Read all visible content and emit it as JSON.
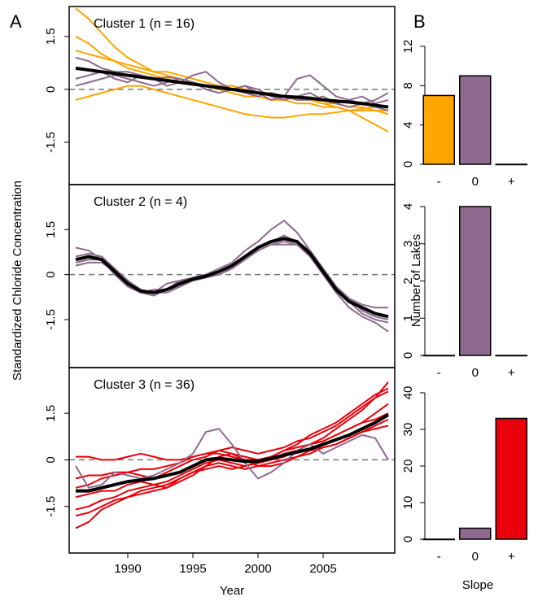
{
  "figure": {
    "panel_a": "A",
    "panel_b": "B",
    "y_label_a": "Standardized Chloride Concentration",
    "x_label_a": "Year",
    "y_label_b": "Number of Lakes",
    "x_label_b": "Slope"
  },
  "chart_data": [
    {
      "type": "line",
      "title": "Cluster 1 (n = 16)",
      "x": [
        1986,
        1987,
        1988,
        1989,
        1990,
        1991,
        1992,
        1993,
        1994,
        1995,
        1996,
        1997,
        1998,
        1999,
        2000,
        2001,
        2002,
        2003,
        2004,
        2005,
        2006,
        2007,
        2008,
        2009,
        2010
      ],
      "xlim": [
        1985.5,
        2010.5
      ],
      "ylim": [
        -2.7,
        2.35
      ],
      "yticks": [
        -1.5,
        0,
        1.5
      ],
      "hline": 0,
      "series": [
        {
          "color": "#ffa500",
          "values": [
            2.3,
            2.0,
            1.6,
            1.2,
            0.9,
            0.7,
            0.5,
            0.4,
            0.3,
            0.2,
            0.1,
            0,
            -0.1,
            -0.2,
            -0.2,
            -0.3,
            -0.3,
            -0.4,
            -0.4,
            -0.5,
            -0.5,
            -0.6,
            -0.6,
            -0.6,
            -0.7
          ]
        },
        {
          "color": "#ffa500",
          "values": [
            1.5,
            1.3,
            1.0,
            0.8,
            0.6,
            0.5,
            0.4,
            0.3,
            0.2,
            0.2,
            0.1,
            0.1,
            0,
            0,
            -0.1,
            -0.1,
            -0.2,
            -0.2,
            -0.3,
            -0.4,
            -0.5,
            -0.6,
            -0.8,
            -1.0,
            -1.2
          ]
        },
        {
          "color": "#ffa500",
          "values": [
            -0.3,
            -0.2,
            -0.1,
            0,
            0.1,
            0.1,
            0,
            -0.1,
            -0.2,
            -0.3,
            -0.4,
            -0.5,
            -0.6,
            -0.7,
            -0.75,
            -0.8,
            -0.8,
            -0.75,
            -0.7,
            -0.7,
            -0.65,
            -0.6,
            -0.55,
            -0.5,
            -0.5
          ]
        },
        {
          "color": "#ffa500",
          "values": [
            1.1,
            1.0,
            0.9,
            0.8,
            0.7,
            0.6,
            0.5,
            0.5,
            0.4,
            0.3,
            0.2,
            0.1,
            0.1,
            0,
            -0.1,
            -0.1,
            -0.2,
            -0.3,
            -0.3,
            -0.4,
            -0.4,
            -0.5,
            -0.5,
            -0.6,
            -0.6
          ]
        },
        {
          "color": "#8e6b8e",
          "values": [
            0.3,
            0.4,
            0.5,
            0.3,
            0.2,
            0.4,
            0.3,
            0.1,
            0.2,
            0.4,
            0.5,
            0.2,
            0,
            0.1,
            -0.1,
            -0.3,
            -0.2,
            0.3,
            0.4,
            0.1,
            -0.2,
            -0.3,
            -0.4,
            -0.3,
            -0.1
          ]
        },
        {
          "color": "#8e6b8e",
          "values": [
            0.9,
            0.8,
            0.6,
            0.5,
            0.5,
            0.4,
            0.3,
            0.35,
            0.3,
            0.2,
            0.1,
            0.1,
            0,
            -0.1,
            -0.2,
            -0.1,
            -0.2,
            -0.3,
            -0.3,
            -0.2,
            -0.4,
            -0.5,
            -0.4,
            -0.5,
            -0.6
          ]
        },
        {
          "color": "#8e6b8e",
          "values": [
            0.1,
            0.2,
            0.3,
            0.4,
            0.3,
            0.2,
            0.1,
            0.2,
            0.3,
            0.2,
            0,
            -0.1,
            0,
            0.1,
            0,
            -0.2,
            -0.3,
            -0.2,
            -0.1,
            -0.3,
            -0.4,
            -0.3,
            -0.2,
            -0.4,
            -0.3
          ]
        },
        {
          "color": "#000000",
          "values": [
            0.6,
            0.55,
            0.5,
            0.45,
            0.4,
            0.35,
            0.3,
            0.25,
            0.2,
            0.15,
            0.1,
            0.05,
            0,
            -0.05,
            -0.1,
            -0.15,
            -0.2,
            -0.22,
            -0.25,
            -0.3,
            -0.33,
            -0.36,
            -0.4,
            -0.45,
            -0.5
          ]
        }
      ]
    },
    {
      "type": "line",
      "title": "Cluster 2 (n = 4)",
      "x": [
        1986,
        1987,
        1988,
        1989,
        1990,
        1991,
        1992,
        1993,
        1994,
        1995,
        1996,
        1997,
        1998,
        1999,
        2000,
        2001,
        2002,
        2003,
        2004,
        2005,
        2006,
        2007,
        2008,
        2009,
        2010
      ],
      "xlim": [
        1985.5,
        2010.5
      ],
      "ylim": [
        -3.1,
        3.0
      ],
      "yticks": [
        -1.5,
        0,
        1.5
      ],
      "hline": 0,
      "series": [
        {
          "color": "#8e6b8e",
          "values": [
            0.9,
            0.8,
            0.5,
            0,
            -0.4,
            -0.6,
            -0.7,
            -0.5,
            -0.2,
            -0.1,
            0,
            0.2,
            0.4,
            0.8,
            1.1,
            1.5,
            1.8,
            1.4,
            0.8,
            0.2,
            -0.4,
            -0.8,
            -1.0,
            -1.1,
            -1.1
          ]
        },
        {
          "color": "#8e6b8e",
          "values": [
            0.4,
            0.5,
            0.5,
            0.2,
            -0.2,
            -0.5,
            -0.6,
            -0.3,
            -0.2,
            -0.2,
            -0.1,
            0,
            0.2,
            0.5,
            0.8,
            1.0,
            1.1,
            1.0,
            0.6,
            0,
            -0.6,
            -1.1,
            -1.4,
            -1.6,
            -1.9
          ]
        },
        {
          "color": "#8e6b8e",
          "values": [
            0.3,
            0.4,
            0.4,
            0.1,
            -0.3,
            -0.6,
            -0.6,
            -0.6,
            -0.4,
            -0.1,
            0,
            0.1,
            0.3,
            0.5,
            0.8,
            1.0,
            1.0,
            1.0,
            0.7,
            0.2,
            -0.4,
            -0.8,
            -1.2,
            -1.4,
            -1.5
          ]
        },
        {
          "color": "#8e6b8e",
          "values": [
            0.6,
            0.7,
            0.6,
            0.2,
            -0.4,
            -0.6,
            -0.5,
            -0.5,
            -0.4,
            -0.2,
            -0.1,
            0.1,
            0.2,
            0.5,
            0.9,
            1.1,
            1.3,
            1.1,
            0.8,
            0.2,
            -0.4,
            -0.9,
            -1.3,
            -1.5,
            -1.6
          ]
        },
        {
          "color": "#000000",
          "values": [
            0.5,
            0.6,
            0.5,
            0.1,
            -0.3,
            -0.55,
            -0.6,
            -0.5,
            -0.3,
            -0.15,
            -0.05,
            0.1,
            0.3,
            0.6,
            0.9,
            1.1,
            1.2,
            1.1,
            0.7,
            0.1,
            -0.5,
            -0.9,
            -1.1,
            -1.3,
            -1.4
          ]
        }
      ]
    },
    {
      "type": "line",
      "title": "Cluster 3 (n = 36)",
      "x": [
        1986,
        1987,
        1988,
        1989,
        1990,
        1991,
        1992,
        1993,
        1994,
        1995,
        1996,
        1997,
        1998,
        1999,
        2000,
        2001,
        2002,
        2003,
        2004,
        2005,
        2006,
        2007,
        2008,
        2009,
        2010
      ],
      "xlim": [
        1985.5,
        2010.5
      ],
      "ylim": [
        -3.0,
        2.97
      ],
      "yticks": [
        -1.5,
        0,
        1.5
      ],
      "xticks": [
        1990,
        1995,
        2000,
        2005
      ],
      "hline": 0,
      "series": [
        {
          "color": "#e8000b",
          "values": [
            -2.2,
            -2.0,
            -1.6,
            -1.4,
            -1.2,
            -1.1,
            -1.0,
            -0.9,
            -0.6,
            -0.4,
            -0.3,
            -0.2,
            -0.3,
            -0.2,
            -0.1,
            0,
            0.2,
            0.3,
            0.5,
            0.6,
            0.8,
            1.0,
            1.2,
            1.5,
            1.8
          ]
        },
        {
          "color": "#e8000b",
          "values": [
            -1.6,
            -1.5,
            -1.3,
            -1.2,
            -1.0,
            -0.9,
            -0.8,
            -0.7,
            -0.5,
            -0.3,
            -0.1,
            0,
            -0.1,
            -0.2,
            -0.1,
            0,
            0.1,
            0.3,
            0.5,
            0.7,
            1.0,
            1.3,
            1.6,
            2.0,
            2.5
          ]
        },
        {
          "color": "#e8000b",
          "values": [
            0.1,
            0.1,
            0,
            0,
            0.1,
            0.2,
            0.1,
            0,
            0,
            0.1,
            0.2,
            0.3,
            0.2,
            0.1,
            0,
            0.1,
            0.3,
            0.4,
            0.5,
            0.6,
            0.8,
            1.0,
            1.2,
            1.3,
            1.5
          ]
        },
        {
          "color": "#e8000b",
          "values": [
            -0.6,
            -0.5,
            -0.5,
            -0.4,
            -0.4,
            -0.3,
            -0.3,
            -0.2,
            -0.1,
            0.1,
            0.2,
            0.2,
            0.1,
            0,
            0,
            0.1,
            0.3,
            0.5,
            0.8,
            1.0,
            1.2,
            1.5,
            1.8,
            2.1,
            2.3
          ]
        },
        {
          "color": "#e8000b",
          "values": [
            -1.2,
            -1.1,
            -1.0,
            -1.0,
            -0.8,
            -0.7,
            -0.8,
            -0.9,
            -0.7,
            -0.5,
            -0.2,
            0.1,
            0.2,
            0,
            -0.2,
            -0.2,
            -0.1,
            0.1,
            0.3,
            0.4,
            0.5,
            0.7,
            0.9,
            1.0,
            1.1
          ]
        },
        {
          "color": "#e8000b",
          "values": [
            -1.8,
            -1.7,
            -1.5,
            -1.3,
            -1.2,
            -1.0,
            -0.9,
            -0.8,
            -0.6,
            -0.4,
            -0.2,
            -0.1,
            -0.2,
            -0.3,
            -0.2,
            -0.1,
            0,
            0.1,
            0.2,
            0.4,
            0.5,
            0.7,
            0.9,
            1.1,
            1.3
          ]
        },
        {
          "color": "#e8000b",
          "values": [
            -0.9,
            -0.8,
            -0.6,
            -0.5,
            -0.4,
            -0.5,
            -0.6,
            -0.4,
            -0.2,
            0,
            0.1,
            0.3,
            0.4,
            0.3,
            0.2,
            0.3,
            0.4,
            0.6,
            0.7,
            0.9,
            1.1,
            1.4,
            1.7,
            2.0,
            2.2
          ]
        },
        {
          "color": "#8e6b8e",
          "values": [
            -0.2,
            -0.9,
            -0.8,
            -0.4,
            -0.5,
            -0.6,
            -0.5,
            -0.3,
            -0.1,
            0.2,
            0.9,
            1.0,
            0.5,
            -0.1,
            -0.6,
            -0.4,
            -0.1,
            0.3,
            0.5,
            0.2,
            0.4,
            0.6,
            0.8,
            0.7,
            0
          ]
        },
        {
          "color": "#000000",
          "values": [
            -1.0,
            -1.0,
            -0.9,
            -0.8,
            -0.7,
            -0.65,
            -0.6,
            -0.5,
            -0.4,
            -0.2,
            0,
            0.05,
            0,
            -0.05,
            -0.05,
            0.05,
            0.15,
            0.25,
            0.35,
            0.5,
            0.65,
            0.8,
            1.0,
            1.2,
            1.45
          ]
        }
      ]
    },
    {
      "type": "bar",
      "categories": [
        "-",
        "0",
        "+"
      ],
      "values": [
        7,
        9,
        0
      ],
      "colors": [
        "#ffa500",
        "#8e6b8e",
        "#e8000b"
      ],
      "ylim": [
        0,
        12
      ],
      "yticks": [
        0,
        4,
        8,
        12
      ]
    },
    {
      "type": "bar",
      "categories": [
        "-",
        "0",
        "+"
      ],
      "values": [
        0,
        4,
        0
      ],
      "colors": [
        "#ffa500",
        "#8e6b8e",
        "#e8000b"
      ],
      "ylim": [
        0,
        4
      ],
      "yticks": [
        0,
        1,
        2,
        3,
        4
      ]
    },
    {
      "type": "bar",
      "categories": [
        "-",
        "0",
        "+"
      ],
      "values": [
        0,
        3,
        33
      ],
      "colors": [
        "#ffa500",
        "#8e6b8e",
        "#e8000b"
      ],
      "ylim": [
        0,
        40
      ],
      "yticks": [
        0,
        10,
        20,
        30,
        40
      ]
    }
  ]
}
